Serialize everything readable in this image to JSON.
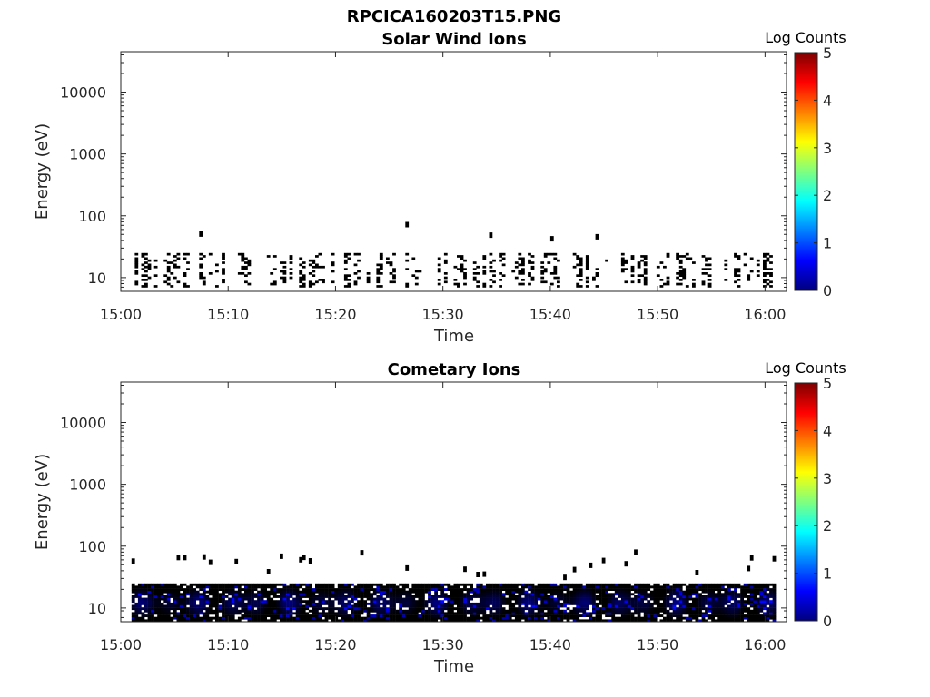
{
  "figure_title": "RPCICA160203T15.PNG",
  "chart_data": [
    {
      "type": "heatmap",
      "title": "Solar Wind Ions",
      "xlabel": "Time",
      "ylabel": "Energy (eV)",
      "x_range": [
        "15:00",
        "16:02"
      ],
      "x_ticks": [
        "15:00",
        "15:10",
        "15:20",
        "15:30",
        "15:40",
        "15:50",
        "16:00"
      ],
      "y_scale": "log",
      "y_range": [
        6,
        45000
      ],
      "y_ticks": [
        "10",
        "100",
        "1000",
        "10000"
      ],
      "y_tick_values": [
        10,
        100,
        1000,
        10000
      ],
      "colorbar": {
        "label": "Log Counts",
        "range": [
          0,
          5
        ],
        "ticks": [
          "0",
          "1",
          "2",
          "3",
          "4",
          "5"
        ],
        "colormap": "jet"
      },
      "data_time_span": [
        "15:01",
        "16:01"
      ],
      "main_band_ev": [
        7,
        25
      ],
      "typical_log_counts": 0.3,
      "max_log_counts": 0.6,
      "sporadic_high_energy_ev": [
        40,
        80
      ]
    },
    {
      "type": "heatmap",
      "title": "Cometary Ions",
      "xlabel": "Time",
      "ylabel": "Energy (eV)",
      "x_range": [
        "15:00",
        "16:02"
      ],
      "x_ticks": [
        "15:00",
        "15:10",
        "15:20",
        "15:30",
        "15:40",
        "15:50",
        "16:00"
      ],
      "y_scale": "log",
      "y_range": [
        6,
        45000
      ],
      "y_ticks": [
        "10",
        "100",
        "1000",
        "10000"
      ],
      "y_tick_values": [
        10,
        100,
        1000,
        10000
      ],
      "colorbar": {
        "label": "Log Counts",
        "range": [
          0,
          5
        ],
        "ticks": [
          "0",
          "1",
          "2",
          "3",
          "4",
          "5"
        ],
        "colormap": "jet"
      },
      "data_time_span": [
        "15:01",
        "16:01"
      ],
      "main_band_ev": [
        6,
        25
      ],
      "typical_log_counts": 1.0,
      "max_log_counts": 1.9,
      "sporadic_high_energy_ev": [
        30,
        80
      ]
    }
  ]
}
